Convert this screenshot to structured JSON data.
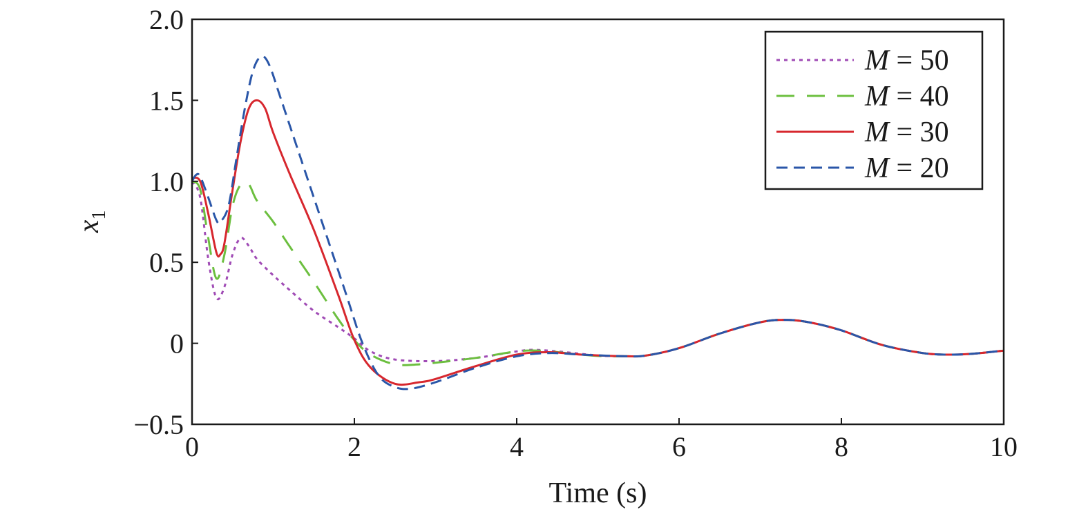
{
  "chart_data": {
    "type": "line",
    "title": "",
    "xlabel": "Time (s)",
    "ylabel": {
      "symbol": "x",
      "subscript": "1"
    },
    "xlim": [
      0,
      10
    ],
    "ylim": [
      -0.5,
      2.0
    ],
    "x_ticks": [
      0,
      2,
      4,
      6,
      8,
      10
    ],
    "x_tick_labels": [
      "0",
      "2",
      "4",
      "6",
      "8",
      "10"
    ],
    "y_ticks": [
      -0.5,
      0,
      0.5,
      1.0,
      1.5,
      2.0
    ],
    "y_tick_labels": [
      "−0.5",
      "0",
      "0.5",
      "1.0",
      "1.5",
      "2.0"
    ],
    "grid": false,
    "legend_position": "top-right",
    "series": [
      {
        "name": "M = 50",
        "legend_var": "M",
        "legend_rest": " = 50",
        "color": "#a04bb5",
        "dash": "short-dot",
        "points": [
          [
            0,
            1.0
          ],
          [
            0.1,
            0.9
          ],
          [
            0.2,
            0.52
          ],
          [
            0.3,
            0.28
          ],
          [
            0.4,
            0.35
          ],
          [
            0.5,
            0.55
          ],
          [
            0.6,
            0.65
          ],
          [
            0.7,
            0.6
          ],
          [
            0.8,
            0.52
          ],
          [
            1.0,
            0.42
          ],
          [
            1.2,
            0.33
          ],
          [
            1.5,
            0.2
          ],
          [
            1.8,
            0.1
          ],
          [
            2.0,
            0.03
          ],
          [
            2.2,
            -0.05
          ],
          [
            2.5,
            -0.1
          ],
          [
            3.0,
            -0.11
          ],
          [
            3.5,
            -0.09
          ],
          [
            4.0,
            -0.05
          ],
          [
            4.2,
            -0.04
          ],
          [
            4.5,
            -0.05
          ],
          [
            5.0,
            -0.075
          ],
          [
            5.35,
            -0.08
          ],
          [
            5.6,
            -0.075
          ],
          [
            6.0,
            -0.03
          ],
          [
            6.5,
            0.06
          ],
          [
            7.0,
            0.13
          ],
          [
            7.3,
            0.145
          ],
          [
            7.6,
            0.13
          ],
          [
            8.0,
            0.08
          ],
          [
            8.5,
            -0.01
          ],
          [
            9.0,
            -0.06
          ],
          [
            9.3,
            -0.07
          ],
          [
            9.6,
            -0.065
          ],
          [
            10.0,
            -0.045
          ]
        ]
      },
      {
        "name": "M = 40",
        "legend_var": "M",
        "legend_rest": " = 40",
        "color": "#6cbf3f",
        "dash": "long-dash",
        "points": [
          [
            0,
            1.0
          ],
          [
            0.1,
            0.95
          ],
          [
            0.2,
            0.65
          ],
          [
            0.3,
            0.4
          ],
          [
            0.4,
            0.55
          ],
          [
            0.5,
            0.85
          ],
          [
            0.6,
            0.98
          ],
          [
            0.7,
            0.98
          ],
          [
            0.8,
            0.88
          ],
          [
            1.0,
            0.75
          ],
          [
            1.2,
            0.6
          ],
          [
            1.5,
            0.38
          ],
          [
            1.8,
            0.15
          ],
          [
            2.0,
            0.02
          ],
          [
            2.2,
            -0.07
          ],
          [
            2.5,
            -0.13
          ],
          [
            2.8,
            -0.13
          ],
          [
            3.0,
            -0.12
          ],
          [
            3.5,
            -0.09
          ],
          [
            4.0,
            -0.05
          ],
          [
            4.3,
            -0.045
          ],
          [
            4.6,
            -0.06
          ],
          [
            5.0,
            -0.078
          ],
          [
            5.35,
            -0.08
          ],
          [
            5.6,
            -0.075
          ],
          [
            6.0,
            -0.03
          ],
          [
            6.5,
            0.06
          ],
          [
            7.0,
            0.13
          ],
          [
            7.3,
            0.145
          ],
          [
            7.6,
            0.13
          ],
          [
            8.0,
            0.08
          ],
          [
            8.5,
            -0.01
          ],
          [
            9.0,
            -0.06
          ],
          [
            9.3,
            -0.07
          ],
          [
            9.6,
            -0.065
          ],
          [
            10.0,
            -0.045
          ]
        ]
      },
      {
        "name": "M = 30",
        "legend_var": "M",
        "legend_rest": " = 30",
        "color": "#d7272e",
        "dash": "solid",
        "points": [
          [
            0,
            1.02
          ],
          [
            0.1,
            1.0
          ],
          [
            0.2,
            0.8
          ],
          [
            0.3,
            0.56
          ],
          [
            0.35,
            0.55
          ],
          [
            0.4,
            0.62
          ],
          [
            0.5,
            0.95
          ],
          [
            0.6,
            1.25
          ],
          [
            0.7,
            1.45
          ],
          [
            0.8,
            1.5
          ],
          [
            0.9,
            1.45
          ],
          [
            1.0,
            1.3
          ],
          [
            1.2,
            1.05
          ],
          [
            1.5,
            0.7
          ],
          [
            1.8,
            0.3
          ],
          [
            2.0,
            0.02
          ],
          [
            2.2,
            -0.15
          ],
          [
            2.5,
            -0.25
          ],
          [
            2.8,
            -0.24
          ],
          [
            3.0,
            -0.22
          ],
          [
            3.5,
            -0.14
          ],
          [
            4.0,
            -0.07
          ],
          [
            4.4,
            -0.055
          ],
          [
            4.8,
            -0.07
          ],
          [
            5.35,
            -0.08
          ],
          [
            5.6,
            -0.075
          ],
          [
            6.0,
            -0.03
          ],
          [
            6.5,
            0.06
          ],
          [
            7.0,
            0.13
          ],
          [
            7.3,
            0.145
          ],
          [
            7.6,
            0.13
          ],
          [
            8.0,
            0.08
          ],
          [
            8.5,
            -0.01
          ],
          [
            9.0,
            -0.06
          ],
          [
            9.3,
            -0.07
          ],
          [
            9.6,
            -0.065
          ],
          [
            10.0,
            -0.045
          ]
        ]
      },
      {
        "name": "M = 20",
        "legend_var": "M",
        "legend_rest": " = 20",
        "color": "#2a56a8",
        "dash": "dash",
        "points": [
          [
            0,
            1.0
          ],
          [
            0.05,
            1.04
          ],
          [
            0.1,
            1.03
          ],
          [
            0.2,
            0.9
          ],
          [
            0.3,
            0.76
          ],
          [
            0.35,
            0.75
          ],
          [
            0.45,
            0.85
          ],
          [
            0.55,
            1.15
          ],
          [
            0.65,
            1.45
          ],
          [
            0.75,
            1.68
          ],
          [
            0.85,
            1.77
          ],
          [
            0.95,
            1.72
          ],
          [
            1.1,
            1.5
          ],
          [
            1.3,
            1.2
          ],
          [
            1.6,
            0.75
          ],
          [
            1.9,
            0.3
          ],
          [
            2.1,
            0.0
          ],
          [
            2.3,
            -0.2
          ],
          [
            2.5,
            -0.27
          ],
          [
            2.7,
            -0.28
          ],
          [
            3.0,
            -0.24
          ],
          [
            3.5,
            -0.15
          ],
          [
            4.0,
            -0.08
          ],
          [
            4.4,
            -0.06
          ],
          [
            4.8,
            -0.07
          ],
          [
            5.35,
            -0.08
          ],
          [
            5.6,
            -0.075
          ],
          [
            6.0,
            -0.03
          ],
          [
            6.5,
            0.06
          ],
          [
            7.0,
            0.13
          ],
          [
            7.3,
            0.145
          ],
          [
            7.6,
            0.13
          ],
          [
            8.0,
            0.08
          ],
          [
            8.5,
            -0.01
          ],
          [
            9.0,
            -0.06
          ],
          [
            9.3,
            -0.07
          ],
          [
            9.6,
            -0.065
          ],
          [
            10.0,
            -0.045
          ]
        ]
      }
    ]
  }
}
